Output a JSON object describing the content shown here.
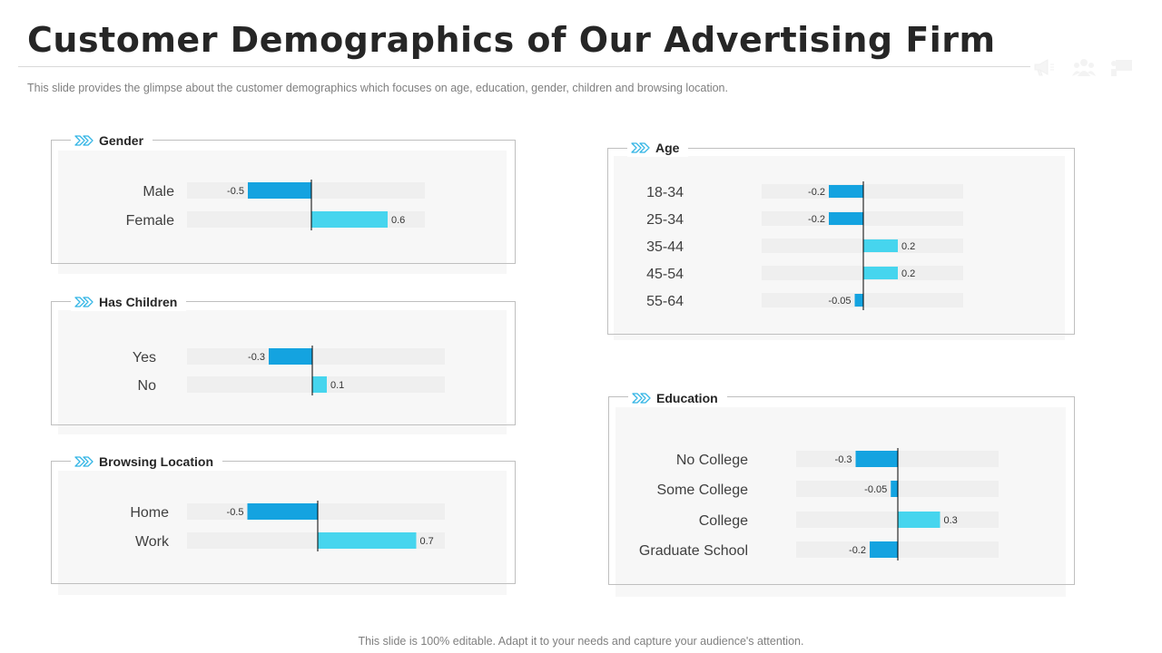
{
  "title": "Customer Demographics of Our Advertising Firm",
  "subtitle": "This slide provides  the glimpse about the customer demographics which focuses on age, education, gender, children and browsing location.",
  "footer": "This slide is 100% editable. Adapt it to your needs and capture your audience's attention.",
  "header_icons": [
    "megaphone-icon",
    "people-icon",
    "presentation-icon"
  ],
  "colors": {
    "negative_bar": "#14a3e0",
    "positive_bar": "#46d5ee",
    "chevron": "#33b5e5",
    "track": "#efefef",
    "axis": "#000000",
    "panel_border": "#bfbfbf"
  },
  "chart_data": [
    {
      "type": "bar",
      "orientation": "horizontal",
      "title": "Gender",
      "categories": [
        "Male",
        "Female"
      ],
      "values": [
        -0.5,
        0.6
      ],
      "value_labels": [
        "-0.5",
        "0.6"
      ]
    },
    {
      "type": "bar",
      "orientation": "horizontal",
      "title": "Has Children",
      "categories": [
        "Yes",
        "No"
      ],
      "values": [
        -0.3,
        0.1
      ],
      "value_labels": [
        "-0.3",
        "0.1"
      ]
    },
    {
      "type": "bar",
      "orientation": "horizontal",
      "title": "Browsing Location",
      "categories": [
        "Home",
        "Work"
      ],
      "values": [
        -0.5,
        0.7
      ],
      "value_labels": [
        "-0.5",
        "0.7"
      ]
    },
    {
      "type": "bar",
      "orientation": "horizontal",
      "title": "Age",
      "categories": [
        "18-34",
        "25-34",
        "35-44",
        "45-54",
        "55-64"
      ],
      "values": [
        -0.2,
        -0.2,
        0.2,
        0.2,
        -0.05
      ],
      "value_labels": [
        "-0.2",
        "-0.2",
        "0.2",
        "0.2",
        "-0.05"
      ]
    },
    {
      "type": "bar",
      "orientation": "horizontal",
      "title": "Education",
      "categories": [
        "No College",
        "Some College",
        "College",
        "Graduate School"
      ],
      "values": [
        -0.3,
        -0.05,
        0.3,
        -0.2
      ],
      "value_labels": [
        "-0.3",
        "-0.05",
        "0.3",
        "-0.2"
      ]
    }
  ]
}
